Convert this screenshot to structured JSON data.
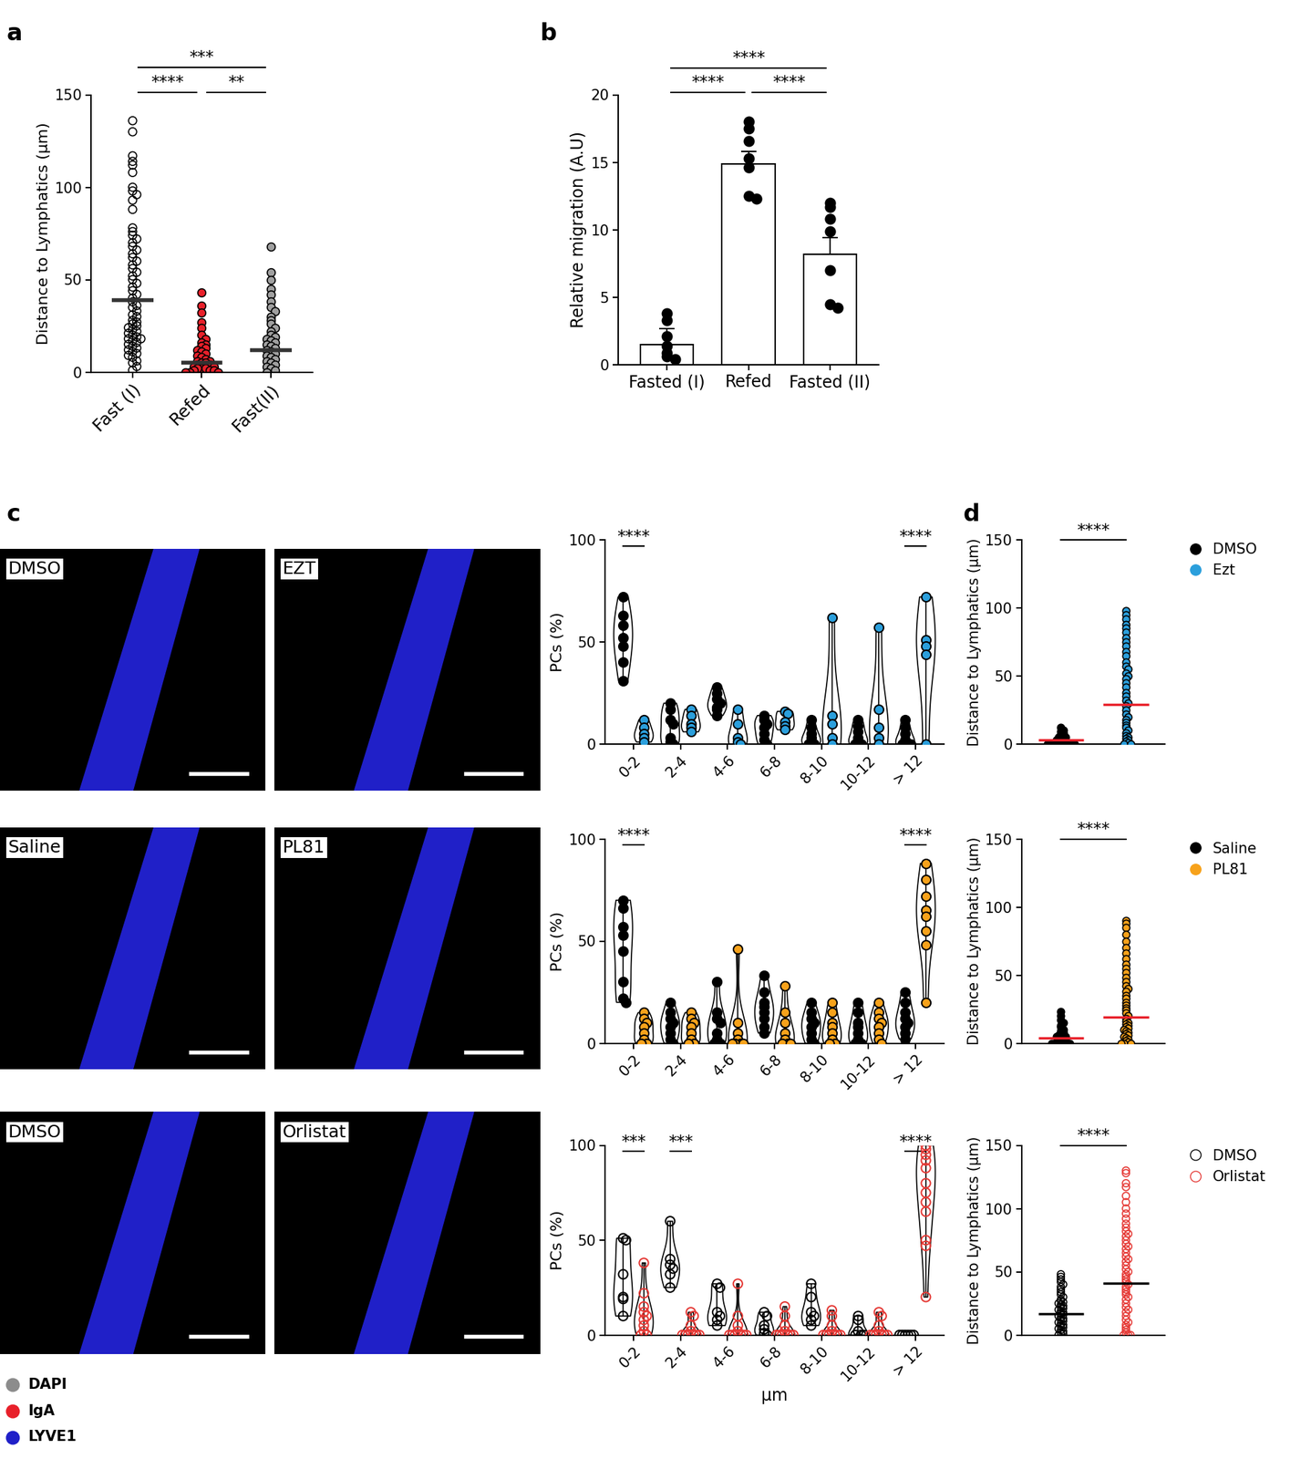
{
  "chart_data": [
    {
      "panel": "a",
      "type": "scatter",
      "y_label": "Distance to Lymphatics (μm)",
      "categories": [
        "Fast (I)",
        "Refed",
        "Fast(II)"
      ],
      "groups": [
        {
          "values": [
            136,
            130,
            117,
            114,
            112,
            108,
            100,
            98,
            96,
            93,
            88,
            78,
            76,
            74,
            72,
            70,
            68,
            66,
            64,
            62,
            60,
            58,
            56,
            54,
            52,
            50,
            48,
            46,
            44,
            42,
            40,
            38,
            36,
            35,
            33,
            31,
            30,
            28,
            27,
            26,
            25,
            24,
            23,
            22,
            21,
            20,
            19,
            18,
            18,
            17,
            16,
            15,
            14,
            13,
            12,
            11,
            10,
            9,
            8,
            6,
            5,
            3,
            1
          ],
          "mean": 39,
          "color": "#000000",
          "marker": "open_circle"
        },
        {
          "values": [
            43,
            36,
            32,
            27,
            24,
            20,
            18,
            16,
            15,
            14,
            13,
            12,
            11,
            10,
            9,
            8,
            7,
            6,
            6,
            5,
            5,
            4,
            4,
            3,
            3,
            2,
            2,
            2,
            1,
            1,
            1,
            0,
            0,
            0
          ],
          "mean": 5,
          "color": "#e8202a",
          "marker": "circle"
        },
        {
          "values": [
            68,
            54,
            50,
            45,
            42,
            38,
            35,
            33,
            30,
            28,
            26,
            24,
            22,
            20,
            19,
            18,
            17,
            16,
            15,
            14,
            13,
            12,
            11,
            10,
            9,
            8,
            7,
            6,
            5,
            4,
            3,
            2,
            1,
            0
          ],
          "mean": 12,
          "color": "#a0a0a0",
          "marker": "circle"
        }
      ],
      "ylim": [
        0,
        150
      ],
      "yticks": [
        0,
        50,
        100,
        150
      ],
      "comparisons": [
        {
          "from": 0,
          "to": 1,
          "label": "****"
        },
        {
          "from": 1,
          "to": 2,
          "label": "**"
        },
        {
          "from": 0,
          "to": 2,
          "label": "***"
        }
      ]
    },
    {
      "panel": "b",
      "type": "bar",
      "y_label": "Relative migration (A.U)",
      "categories": [
        "Fasted (I)",
        "Refed",
        "Fasted (II)"
      ],
      "values": [
        1.5,
        14.9,
        8.2
      ],
      "errors": [
        1.2,
        0.9,
        1.2
      ],
      "points": [
        [
          3.8,
          3.3,
          2.1,
          1.4,
          0.9,
          0.6,
          0.4
        ],
        [
          18,
          17.5,
          16.6,
          15.3,
          14.6,
          12.5,
          12.3
        ],
        [
          12,
          11.7,
          10.8,
          9.9,
          7,
          4.5,
          4.2
        ]
      ],
      "color": "#ffffff",
      "ylim": [
        0,
        20
      ],
      "yticks": [
        0,
        5,
        10,
        15,
        20
      ],
      "comparisons": [
        {
          "from": 0,
          "to": 1,
          "label": "****"
        },
        {
          "from": 1,
          "to": 2,
          "label": "****"
        },
        {
          "from": 0,
          "to": 2,
          "label": "****"
        }
      ]
    },
    {
      "panel": "c",
      "type": "violin",
      "y_label": "PCs (%)",
      "categories": [
        "0-2",
        "2-4",
        "4-6",
        "6-8",
        "8-10",
        "10-12",
        "> 12"
      ],
      "series": [
        {
          "color": "#000000",
          "marker": "circle",
          "values": [
            [
              72,
              63,
              58,
              52,
              48,
              40,
              31
            ],
            [
              20,
              17,
              12,
              10,
              3,
              1,
              0
            ],
            [
              28,
              25,
              22,
              20,
              18,
              17,
              14
            ],
            [
              14,
              12,
              10,
              8,
              5,
              2,
              0
            ],
            [
              12,
              8,
              5,
              3,
              1,
              0,
              0
            ],
            [
              12,
              9,
              6,
              3,
              1,
              0,
              0
            ],
            [
              12,
              8,
              5,
              2,
              0,
              0,
              0
            ]
          ]
        },
        {
          "color": "#2b9fdc",
          "marker": "circle",
          "values": [
            [
              12,
              8,
              5,
              3,
              1
            ],
            [
              17,
              14,
              10,
              8,
              6
            ],
            [
              17,
              10,
              3,
              1,
              0
            ],
            [
              16,
              15,
              11,
              9,
              7
            ],
            [
              62,
              14,
              10,
              3,
              0
            ],
            [
              57,
              17,
              8,
              3,
              0
            ],
            [
              72,
              51,
              48,
              44,
              0
            ]
          ]
        }
      ],
      "ylim": [
        0,
        100
      ],
      "yticks": [
        0,
        50,
        100
      ],
      "annotations": [
        {
          "category": 0,
          "label": "****"
        },
        {
          "category": 6,
          "label": "****"
        }
      ]
    },
    {
      "panel": "c",
      "type": "violin",
      "y_label": "PCs (%)",
      "categories": [
        "0-2",
        "2-4",
        "4-6",
        "6-8",
        "8-10",
        "10-12",
        "> 12"
      ],
      "series": [
        {
          "color": "#000000",
          "marker": "circle",
          "values": [
            [
              70,
              66,
              57,
              53,
              45,
              30,
              22,
              20
            ],
            [
              20,
              15,
              12,
              10,
              8,
              5,
              2,
              0
            ],
            [
              30,
              15,
              12,
              10,
              5,
              2,
              0,
              0
            ],
            [
              33,
              25,
              20,
              18,
              15,
              12,
              8,
              5
            ],
            [
              20,
              15,
              12,
              10,
              8,
              5,
              2,
              0
            ],
            [
              20,
              15,
              10,
              8,
              5,
              2,
              0,
              0
            ],
            [
              25,
              20,
              15,
              12,
              10,
              8,
              5,
              2
            ]
          ]
        },
        {
          "color": "#f7a21b",
          "marker": "circle",
          "values": [
            [
              15,
              12,
              10,
              8,
              5,
              2,
              0,
              0
            ],
            [
              15,
              12,
              10,
              8,
              5,
              2,
              0,
              0
            ],
            [
              46,
              10,
              5,
              2,
              0,
              0,
              0,
              0
            ],
            [
              28,
              15,
              10,
              5,
              2,
              0,
              0,
              0
            ],
            [
              20,
              15,
              10,
              8,
              5,
              2,
              0,
              0
            ],
            [
              20,
              15,
              12,
              10,
              8,
              5,
              2,
              0
            ],
            [
              88,
              80,
              72,
              65,
              62,
              55,
              48,
              20
            ]
          ]
        }
      ],
      "ylim": [
        0,
        100
      ],
      "yticks": [
        0,
        50,
        100
      ],
      "annotations": [
        {
          "category": 0,
          "label": "****"
        },
        {
          "category": 6,
          "label": "****"
        }
      ]
    },
    {
      "panel": "c",
      "type": "violin",
      "y_label": "PCs (%)",
      "x_label": "μm",
      "categories": [
        "0-2",
        "2-4",
        "4-6",
        "6-8",
        "8-10",
        "10-12",
        "> 12"
      ],
      "series": [
        {
          "color": "#000000",
          "marker": "open_circle",
          "values": [
            [
              51,
              50,
              32,
              20,
              19,
              10
            ],
            [
              60,
              40,
              37,
              35,
              32,
              25
            ],
            [
              27,
              25,
              12,
              10,
              8,
              5
            ],
            [
              12,
              10,
              5,
              3,
              1,
              0
            ],
            [
              27,
              20,
              12,
              10,
              8,
              5
            ],
            [
              10,
              8,
              2,
              0,
              0,
              0
            ],
            [
              0,
              0,
              0,
              0,
              0,
              0
            ]
          ]
        },
        {
          "color": "#e53935",
          "marker": "open_circle",
          "values": [
            [
              38,
              22,
              15,
              12,
              10,
              8,
              5,
              2,
              0,
              0
            ],
            [
              12,
              10,
              5,
              2,
              0,
              0,
              0,
              0,
              0,
              0
            ],
            [
              27,
              10,
              5,
              2,
              0,
              0,
              0,
              0,
              0,
              0
            ],
            [
              15,
              10,
              5,
              2,
              0,
              0,
              0,
              0,
              0,
              0
            ],
            [
              13,
              10,
              5,
              2,
              0,
              0,
              0,
              0,
              0,
              0
            ],
            [
              12,
              10,
              5,
              2,
              0,
              0,
              0,
              0,
              0,
              0
            ],
            [
              100,
              98,
              95,
              92,
              88,
              80,
              75,
              70,
              65,
              50,
              47,
              20
            ]
          ]
        }
      ],
      "ylim": [
        0,
        100
      ],
      "yticks": [
        0,
        50,
        100
      ],
      "annotations": [
        {
          "category": 0,
          "label": "***"
        },
        {
          "category": 1,
          "label": "***"
        },
        {
          "category": 6,
          "label": "****"
        }
      ]
    },
    {
      "panel": "d",
      "type": "scatter",
      "y_label": "Distance to Lymphatics (μm)",
      "tick_labels": "y",
      "legend": "right",
      "series": [
        {
          "name": "DMSO",
          "color": "#000000",
          "marker": "circle",
          "mean": 3,
          "values": [
            12,
            10,
            9,
            8,
            7,
            6,
            5,
            5,
            4,
            4,
            3,
            3,
            3,
            2,
            2,
            2,
            1,
            1,
            1,
            1,
            0,
            0,
            0,
            0,
            0,
            0
          ]
        },
        {
          "name": "Ezt",
          "color": "#2b9fdc",
          "marker": "circle",
          "mean": 29,
          "values": [
            98,
            95,
            92,
            88,
            85,
            82,
            78,
            75,
            72,
            68,
            65,
            60,
            57,
            55,
            52,
            50,
            48,
            45,
            42,
            38,
            35,
            32,
            30,
            28,
            25,
            22,
            20,
            18,
            16,
            14,
            12,
            10,
            8,
            6,
            5,
            4,
            3,
            2,
            1,
            0,
            0
          ]
        }
      ],
      "ylim": [
        0,
        150
      ],
      "yticks": [
        0,
        50,
        100,
        150
      ],
      "comparisons": [
        {
          "from": 0,
          "to": 1,
          "label": "****"
        }
      ]
    },
    {
      "panel": "d",
      "type": "scatter",
      "y_label": "Distance to Lymphatics (μm)",
      "tick_labels": "y",
      "legend": "right",
      "series": [
        {
          "name": "Saline",
          "color": "#000000",
          "marker": "circle",
          "mean": 4,
          "values": [
            23,
            20,
            17,
            15,
            13,
            12,
            10,
            9,
            8,
            7,
            6,
            6,
            5,
            5,
            4,
            4,
            3,
            3,
            2,
            2,
            1,
            1,
            1,
            0,
            0,
            0,
            0
          ]
        },
        {
          "name": "PL81",
          "color": "#f7a21b",
          "marker": "circle",
          "mean": 19,
          "values": [
            90,
            88,
            85,
            80,
            75,
            70,
            66,
            62,
            58,
            55,
            52,
            48,
            45,
            42,
            40,
            38,
            35,
            33,
            30,
            28,
            26,
            24,
            22,
            20,
            18,
            16,
            15,
            14,
            13,
            12,
            11,
            10,
            9,
            8,
            7,
            6,
            5,
            4,
            3,
            2,
            1,
            0,
            0,
            0
          ]
        }
      ],
      "ylim": [
        0,
        150
      ],
      "yticks": [
        0,
        50,
        100,
        150
      ],
      "comparisons": [
        {
          "from": 0,
          "to": 1,
          "label": "****"
        }
      ]
    },
    {
      "panel": "d",
      "type": "scatter",
      "y_label": "Distance to Lymphatics (μm)",
      "tick_labels": "y",
      "legend": "right",
      "series": [
        {
          "name": "DMSO",
          "color": "#000000",
          "marker": "open_circle",
          "mean": 17,
          "values": [
            48,
            46,
            44,
            42,
            40,
            38,
            36,
            34,
            32,
            30,
            28,
            27,
            26,
            25,
            24,
            23,
            22,
            21,
            20,
            19,
            18,
            17,
            16,
            15,
            14,
            13,
            12,
            11,
            10,
            9,
            8,
            7,
            6,
            5,
            4,
            3,
            2,
            1,
            0
          ]
        },
        {
          "name": "Orlistat",
          "color": "#e53935",
          "marker": "open_circle",
          "mean": 41,
          "values": [
            130,
            128,
            120,
            117,
            110,
            105,
            100,
            96,
            92,
            88,
            85,
            82,
            80,
            78,
            75,
            72,
            70,
            68,
            65,
            62,
            60,
            58,
            55,
            52,
            50,
            48,
            46,
            44,
            42,
            40,
            38,
            36,
            34,
            32,
            30,
            28,
            25,
            22,
            20,
            18,
            15,
            12,
            10,
            8,
            6,
            4,
            2,
            0,
            0,
            0
          ]
        }
      ],
      "ylim": [
        0,
        150
      ],
      "yticks": [
        0,
        50,
        100,
        150
      ],
      "comparisons": [
        {
          "from": 0,
          "to": 1,
          "label": "****"
        }
      ]
    }
  ],
  "images": [
    [
      "DMSO",
      "EZT"
    ],
    [
      "Saline",
      "PL81"
    ],
    [
      "DMSO",
      "Orlistat"
    ]
  ],
  "channels": [
    {
      "name": "DAPI",
      "color": "#8c8c8c"
    },
    {
      "name": "IgA",
      "color": "#e8202a"
    },
    {
      "name": "LYVE1",
      "color": "#2020c8"
    }
  ],
  "panel_labels": [
    "a",
    "b",
    "c",
    "d"
  ]
}
